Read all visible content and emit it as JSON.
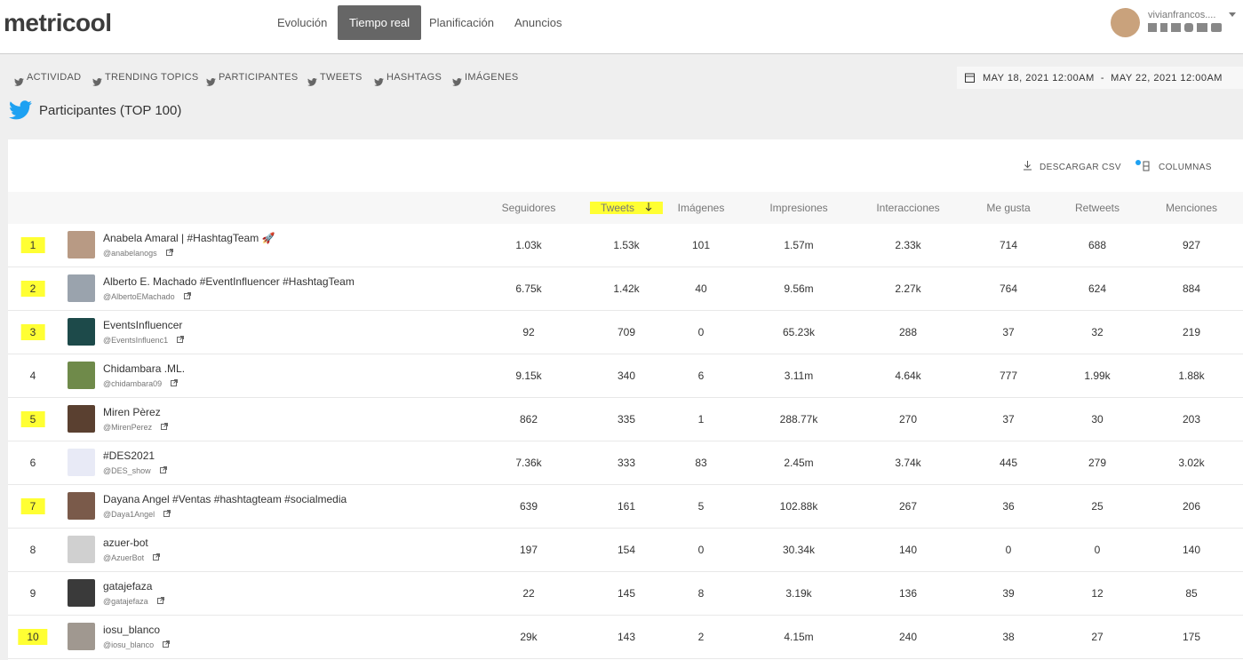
{
  "header": {
    "logo": "metricool",
    "nav": [
      {
        "label": "Evolución",
        "active": false
      },
      {
        "label": "Tiempo real",
        "active": true
      },
      {
        "label": "Planificación",
        "active": false
      },
      {
        "label": "Anuncios",
        "active": false
      }
    ],
    "user": "vivianfrancos...."
  },
  "tabs": [
    "ACTIVIDAD",
    "TRENDING TOPICS",
    "PARTICIPANTES",
    "TWEETS",
    "HASHTAGS",
    "IMÁGENES"
  ],
  "date_range": "MAY 18, 2021 12:00AM  -  MAY 22, 2021 12:00AM",
  "section_title": "Participantes (TOP 100)",
  "actions": [
    "DESCARGAR CSV",
    "COLUMNAS"
  ],
  "table": {
    "columns": [
      {
        "label": "Seguidores",
        "highlight": false
      },
      {
        "label": "Tweets",
        "highlight": true
      },
      {
        "label": "Imágenes",
        "highlight": false
      },
      {
        "label": "Impresiones",
        "highlight": false
      },
      {
        "label": "Interacciones",
        "highlight": false
      },
      {
        "label": "Me gusta",
        "highlight": false
      },
      {
        "label": "Retweets",
        "highlight": false
      },
      {
        "label": "Menciones",
        "highlight": false
      }
    ],
    "rows": [
      {
        "rank": 1,
        "highlight": true,
        "name": "Anabela Amaral | #HashtagTeam 🚀",
        "handle": "@anabelanogs",
        "cells": [
          "1.03k",
          "1.53k",
          "101",
          "1.57m",
          "2.33k",
          "714",
          "688",
          "927"
        ]
      },
      {
        "rank": 2,
        "highlight": true,
        "name": "Alberto E. Machado #EventInfluencer #HashtagTeam",
        "handle": "@AlbertoEMachado",
        "cells": [
          "6.75k",
          "1.42k",
          "40",
          "9.56m",
          "2.27k",
          "764",
          "624",
          "884"
        ]
      },
      {
        "rank": 3,
        "highlight": true,
        "name": "EventsInfluencer",
        "handle": "@EventsInfluenc1",
        "cells": [
          "92",
          "709",
          "0",
          "65.23k",
          "288",
          "37",
          "32",
          "219"
        ]
      },
      {
        "rank": 4,
        "highlight": false,
        "name": "Chidambara .ML.",
        "handle": "@chidambara09",
        "cells": [
          "9.15k",
          "340",
          "6",
          "3.11m",
          "4.64k",
          "777",
          "1.99k",
          "1.88k"
        ]
      },
      {
        "rank": 5,
        "highlight": true,
        "name": "Miren Pèrez",
        "handle": "@MirenPerez",
        "cells": [
          "862",
          "335",
          "1",
          "288.77k",
          "270",
          "37",
          "30",
          "203"
        ]
      },
      {
        "rank": 6,
        "highlight": false,
        "name": "#DES2021",
        "handle": "@DES_show",
        "cells": [
          "7.36k",
          "333",
          "83",
          "2.45m",
          "3.74k",
          "445",
          "279",
          "3.02k"
        ]
      },
      {
        "rank": 7,
        "highlight": true,
        "name": "Dayana Angel #Ventas #hashtagteam #socialmedia",
        "handle": "@Daya1Angel",
        "cells": [
          "639",
          "161",
          "5",
          "102.88k",
          "267",
          "36",
          "25",
          "206"
        ]
      },
      {
        "rank": 8,
        "highlight": false,
        "name": "azuer-bot",
        "handle": "@AzuerBot",
        "cells": [
          "197",
          "154",
          "0",
          "30.34k",
          "140",
          "0",
          "0",
          "140"
        ]
      },
      {
        "rank": 9,
        "highlight": false,
        "name": "gatajefaza",
        "handle": "@gatajefaza",
        "cells": [
          "22",
          "145",
          "8",
          "3.19k",
          "136",
          "39",
          "12",
          "85"
        ]
      },
      {
        "rank": 10,
        "highlight": true,
        "name": "iosu_blanco",
        "handle": "@iosu_blanco",
        "cells": [
          "29k",
          "143",
          "2",
          "4.15m",
          "240",
          "38",
          "27",
          "175"
        ]
      }
    ]
  }
}
